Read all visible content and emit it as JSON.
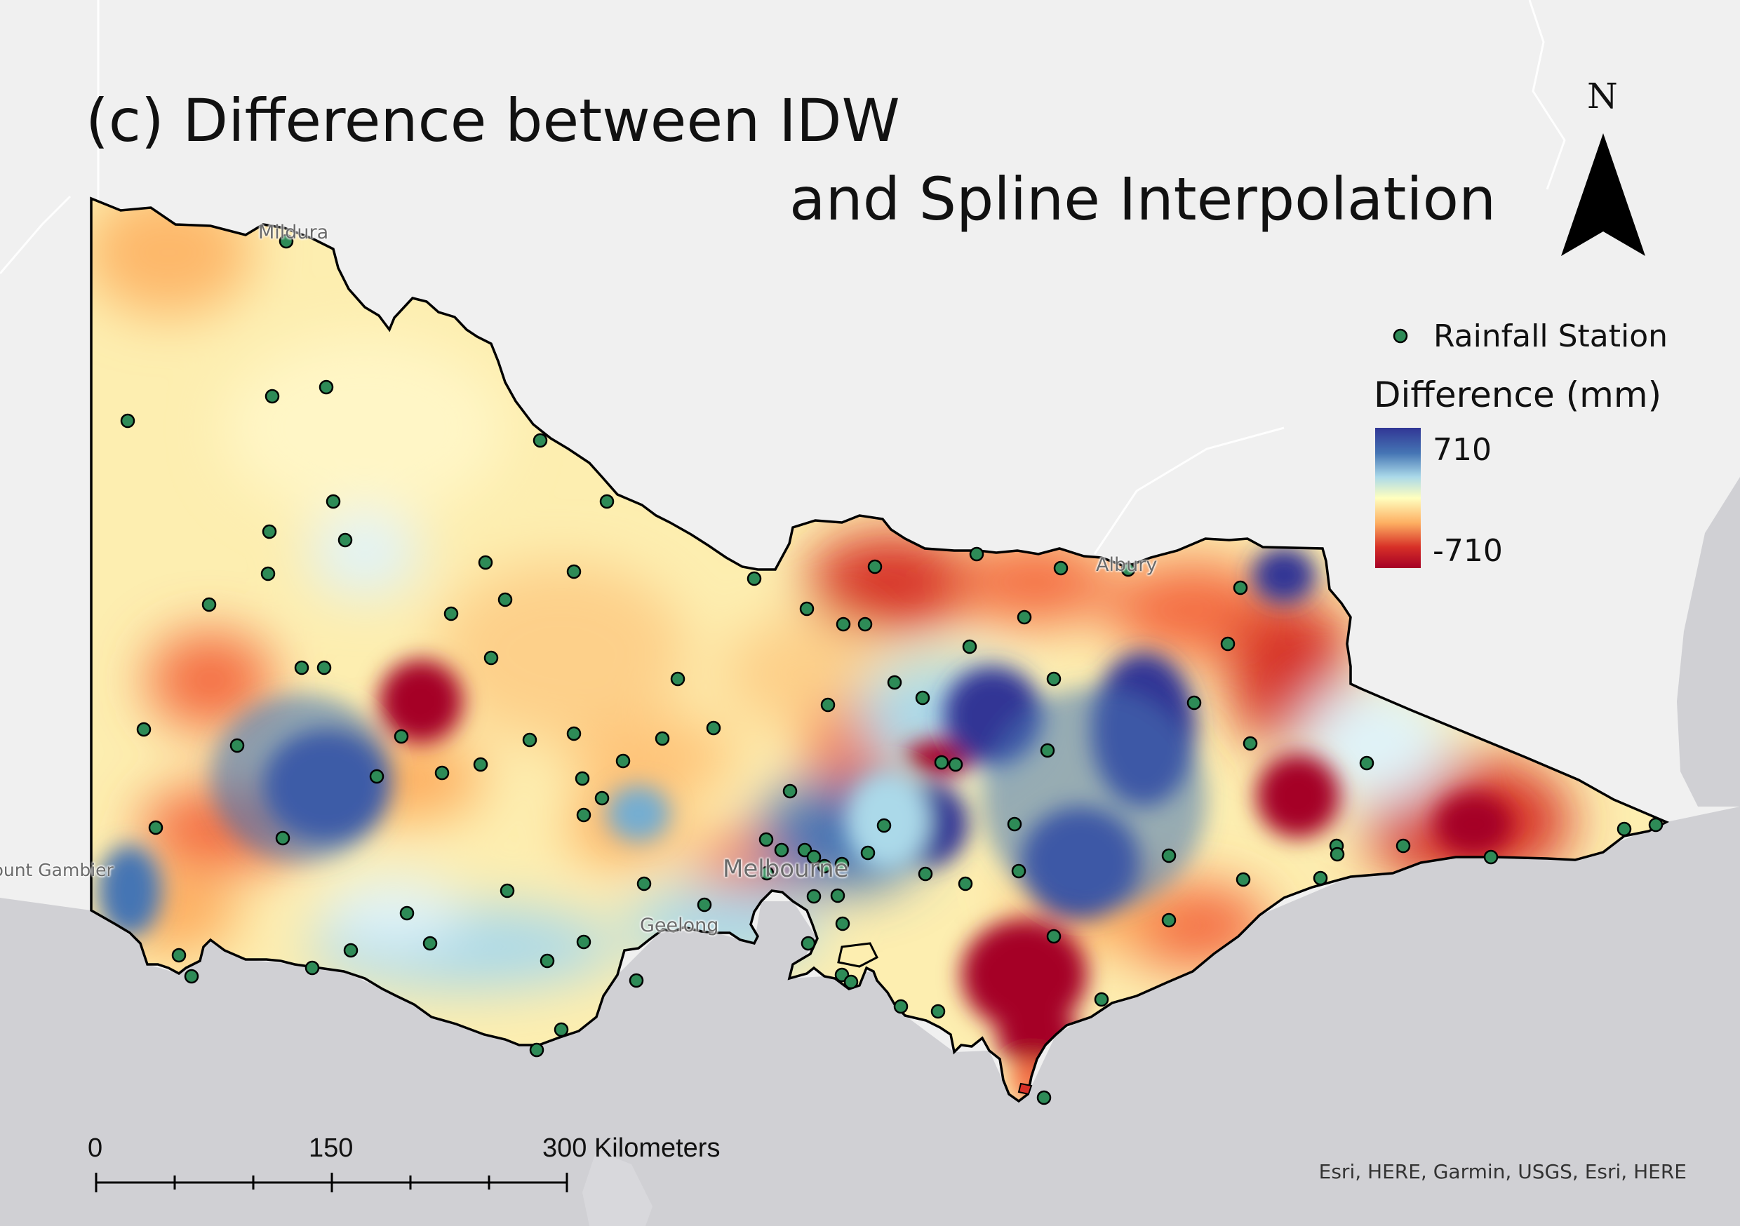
{
  "title": {
    "line1": "(c) Difference between IDW",
    "line2": "and Spline Interpolation"
  },
  "north_arrow": {
    "label": "N"
  },
  "legend": {
    "station_label": "Rainfall Station",
    "raster_title": "Difference (mm)",
    "max_label": "710",
    "min_label": "-710",
    "ramp_colors": [
      "#313695",
      "#4575b4",
      "#abd9e9",
      "#ffffbf",
      "#fdae61",
      "#d73027",
      "#a50026"
    ]
  },
  "cities": [
    {
      "name": "Mildura"
    },
    {
      "name": "Albury"
    },
    {
      "name": "Mount Gambier"
    },
    {
      "name": "Melbourne"
    },
    {
      "name": "Geelong"
    }
  ],
  "scale_bar": {
    "label_0": "0",
    "label_mid": "150",
    "label_end": "300 Kilometers"
  },
  "attribution": "Esri, HERE, Garmin, USGS, Esri, HERE",
  "colors": {
    "background": "#f0f0f0",
    "ocean": "#d0d0d4",
    "station_fill": "#2e8b57",
    "outline": "#000000"
  }
}
